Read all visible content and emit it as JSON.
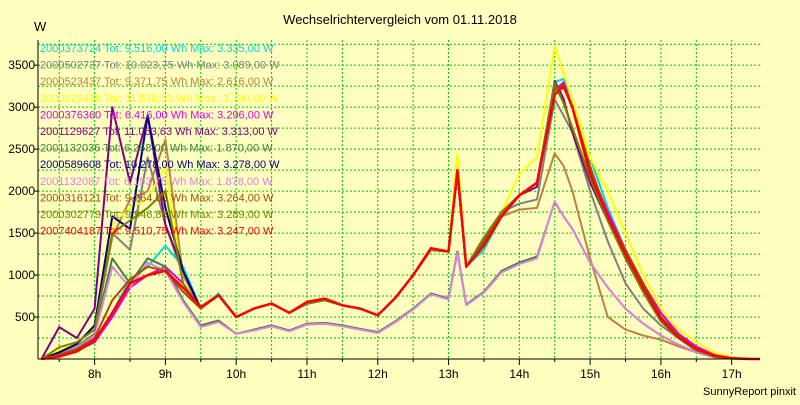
{
  "chart_data": {
    "type": "line",
    "title": "Wechselrichtervergleich vom 01.11.2018",
    "ylabel": "W",
    "footer": "SunnyReport pinxit",
    "ylim": [
      0,
      3800
    ],
    "xlim": [
      7.2,
      17.4
    ],
    "yticks": [
      500,
      1000,
      1500,
      2000,
      2500,
      3000,
      3500
    ],
    "xticks": [
      {
        "value": 8,
        "label": "8h"
      },
      {
        "value": 9,
        "label": "9h"
      },
      {
        "value": 10,
        "label": "10h"
      },
      {
        "value": 11,
        "label": "11h"
      },
      {
        "value": 12,
        "label": "12h"
      },
      {
        "value": 13,
        "label": "13h"
      },
      {
        "value": 14,
        "label": "14h"
      },
      {
        "value": 15,
        "label": "15h"
      },
      {
        "value": 16,
        "label": "16h"
      },
      {
        "value": 17,
        "label": "17h"
      }
    ],
    "grid": true,
    "legend_position": "top-left",
    "x": [
      7.25,
      7.5,
      7.75,
      8.0,
      8.25,
      8.5,
      8.75,
      9.0,
      9.25,
      9.5,
      9.75,
      10.0,
      10.25,
      10.5,
      10.75,
      11.0,
      11.25,
      11.5,
      11.75,
      12.0,
      12.25,
      12.5,
      12.75,
      13.0,
      13.125,
      13.25,
      13.5,
      13.75,
      14.0,
      14.25,
      14.5,
      14.625,
      14.75,
      15.0,
      15.25,
      15.5,
      15.75,
      16.0,
      16.25,
      16.5,
      16.75,
      17.0,
      17.25,
      17.4
    ],
    "series": [
      {
        "name": "2000373724",
        "label": "2000373724 Tot: 9.516,00 Wh Max: 3.335,00 W",
        "color": "#00d8d8",
        "values": [
          0,
          40,
          100,
          200,
          550,
          950,
          1100,
          1350,
          1100,
          600,
          780,
          500,
          600,
          660,
          550,
          660,
          700,
          640,
          600,
          520,
          730,
          1000,
          1300,
          1280,
          2250,
          1100,
          1300,
          1700,
          1950,
          2100,
          3300,
          3335,
          3100,
          2400,
          1800,
          1300,
          900,
          500,
          280,
          120,
          40,
          10,
          0,
          0
        ]
      },
      {
        "name": "2000502737",
        "label": "2000502737 Tot: 10.023,75 Wh Max: 3.089,00 W",
        "color": "#808080",
        "values": [
          0,
          60,
          150,
          300,
          1500,
          1300,
          2400,
          1600,
          1000,
          600,
          760,
          500,
          600,
          660,
          550,
          660,
          700,
          640,
          600,
          520,
          730,
          1000,
          1300,
          1280,
          2200,
          1100,
          1400,
          1750,
          1850,
          1900,
          3089,
          2900,
          2700,
          2000,
          1400,
          900,
          600,
          400,
          250,
          100,
          30,
          10,
          0,
          0
        ]
      },
      {
        "name": "2000523437",
        "label": "2000523437 Tot: 9.371,75 Wh Max: 2.616,00 W",
        "color": "#c08040",
        "values": [
          0,
          80,
          200,
          350,
          1450,
          1900,
          2000,
          2616,
          1000,
          600,
          760,
          500,
          600,
          660,
          550,
          660,
          700,
          640,
          600,
          520,
          730,
          1000,
          1300,
          1280,
          2200,
          1100,
          1400,
          1700,
          1780,
          1800,
          2450,
          2300,
          2000,
          1200,
          500,
          350,
          280,
          230,
          150,
          80,
          20,
          5,
          0,
          0
        ]
      },
      {
        "name": "2000629438",
        "label": "2000629438 Tot: 11.578,50 Wh Max: 3.730,00 W",
        "color": "#ffff00",
        "values": [
          0,
          100,
          200,
          350,
          1600,
          1800,
          1900,
          2300,
          900,
          600,
          760,
          500,
          600,
          660,
          550,
          660,
          700,
          640,
          600,
          520,
          730,
          1000,
          1300,
          1280,
          2450,
          1100,
          1400,
          1750,
          2200,
          2400,
          3730,
          3400,
          3100,
          2400,
          2000,
          1500,
          1000,
          600,
          350,
          200,
          80,
          20,
          0,
          0
        ]
      },
      {
        "name": "2000376360",
        "label": "2000376360 Tot: 6.416,00 Wh Max: 3.296,00 W",
        "color": "#e000e0",
        "values": [
          0,
          30,
          100,
          200,
          500,
          850,
          1000,
          1100,
          900,
          600,
          760,
          500,
          600,
          660,
          550,
          660,
          700,
          640,
          600,
          520,
          730,
          1000,
          1300,
          1280,
          2200,
          1100,
          1350,
          1700,
          1950,
          2100,
          3200,
          3296,
          3000,
          2250,
          1750,
          1300,
          900,
          550,
          300,
          150,
          50,
          10,
          0,
          0
        ]
      },
      {
        "name": "2001129627",
        "label": "2001129627 Tot: 11.063,63 Wh Max: 3.313,00 W",
        "color": "#800080",
        "values": [
          0,
          380,
          250,
          600,
          3000,
          2100,
          2900,
          1600,
          1050,
          600,
          760,
          500,
          600,
          660,
          550,
          660,
          700,
          640,
          600,
          520,
          730,
          1000,
          1300,
          1280,
          2250,
          1100,
          1400,
          1750,
          1950,
          2050,
          3313,
          3100,
          2700,
          2100,
          1650,
          1200,
          800,
          450,
          250,
          100,
          30,
          10,
          0,
          0
        ]
      },
      {
        "name": "2001132036",
        "label": "2001132036 Tot: 6.258,00 Wh Max: 1.870,00 W",
        "color": "#408040",
        "values": [
          0,
          60,
          150,
          300,
          1200,
          900,
          1200,
          1100,
          700,
          400,
          460,
          300,
          350,
          400,
          340,
          420,
          430,
          400,
          360,
          320,
          450,
          600,
          780,
          720,
          1280,
          650,
          800,
          1050,
          1150,
          1220,
          1870,
          1700,
          1550,
          1150,
          850,
          600,
          420,
          280,
          170,
          80,
          25,
          8,
          0,
          0
        ]
      },
      {
        "name": "2000589608",
        "label": "2000589608 Tot: 10.278,00 Wh Max: 3.278,00 W",
        "color": "#000080",
        "values": [
          0,
          80,
          180,
          400,
          1700,
          1550,
          2900,
          1800,
          1050,
          600,
          760,
          500,
          600,
          660,
          550,
          660,
          700,
          640,
          600,
          520,
          730,
          1000,
          1300,
          1280,
          2250,
          1100,
          1400,
          1750,
          1950,
          2100,
          3278,
          3050,
          2750,
          2150,
          1650,
          1200,
          800,
          450,
          250,
          100,
          30,
          10,
          0,
          0
        ]
      },
      {
        "name": "2001132087",
        "label": "2001132087 Tot: 6.193,75 Wh Max: 1.878,00 W",
        "color": "#e080e0",
        "values": [
          0,
          50,
          140,
          280,
          1100,
          850,
          1150,
          1050,
          680,
          380,
          440,
          300,
          340,
          390,
          330,
          410,
          420,
          390,
          350,
          310,
          440,
          590,
          770,
          710,
          1260,
          640,
          790,
          1030,
          1130,
          1200,
          1878,
          1700,
          1550,
          1150,
          850,
          600,
          420,
          280,
          170,
          80,
          25,
          8,
          0,
          0
        ]
      },
      {
        "name": "2000316121",
        "label": "2000316121 Tot: 9.264,00 Wh Max: 3.264,00 W",
        "color": "#a05000",
        "values": [
          0,
          50,
          120,
          250,
          700,
          950,
          1100,
          1050,
          800,
          600,
          760,
          500,
          600,
          660,
          550,
          660,
          700,
          640,
          600,
          520,
          730,
          1000,
          1300,
          1280,
          2250,
          1100,
          1400,
          1750,
          1950,
          2100,
          3200,
          3264,
          3000,
          2300,
          1700,
          1300,
          900,
          500,
          280,
          120,
          40,
          10,
          0,
          0
        ]
      },
      {
        "name": "2000302779",
        "label": "2000302779 Tot: 9.946,88 Wh Max: 3.289,00 W",
        "color": "#808000",
        "values": [
          0,
          140,
          200,
          350,
          1500,
          1650,
          1800,
          2000,
          900,
          600,
          760,
          500,
          600,
          660,
          550,
          660,
          700,
          640,
          600,
          520,
          730,
          1000,
          1300,
          1280,
          2200,
          1100,
          1450,
          1750,
          1950,
          2100,
          3289,
          3050,
          2750,
          2150,
          1650,
          1200,
          800,
          450,
          250,
          100,
          30,
          10,
          0,
          0
        ]
      },
      {
        "name": "2007404187",
        "label": "2007404187 Tot: 9.510,75 Wh Max: 3.247,00 W",
        "color": "#ff0000",
        "values": [
          0,
          30,
          90,
          220,
          550,
          900,
          1000,
          1050,
          850,
          620,
          760,
          500,
          600,
          660,
          550,
          680,
          720,
          640,
          600,
          520,
          730,
          1000,
          1320,
          1280,
          2250,
          1100,
          1350,
          1700,
          1950,
          2100,
          3150,
          3247,
          3000,
          2200,
          1700,
          1250,
          850,
          480,
          260,
          120,
          40,
          10,
          0,
          0
        ]
      }
    ]
  }
}
